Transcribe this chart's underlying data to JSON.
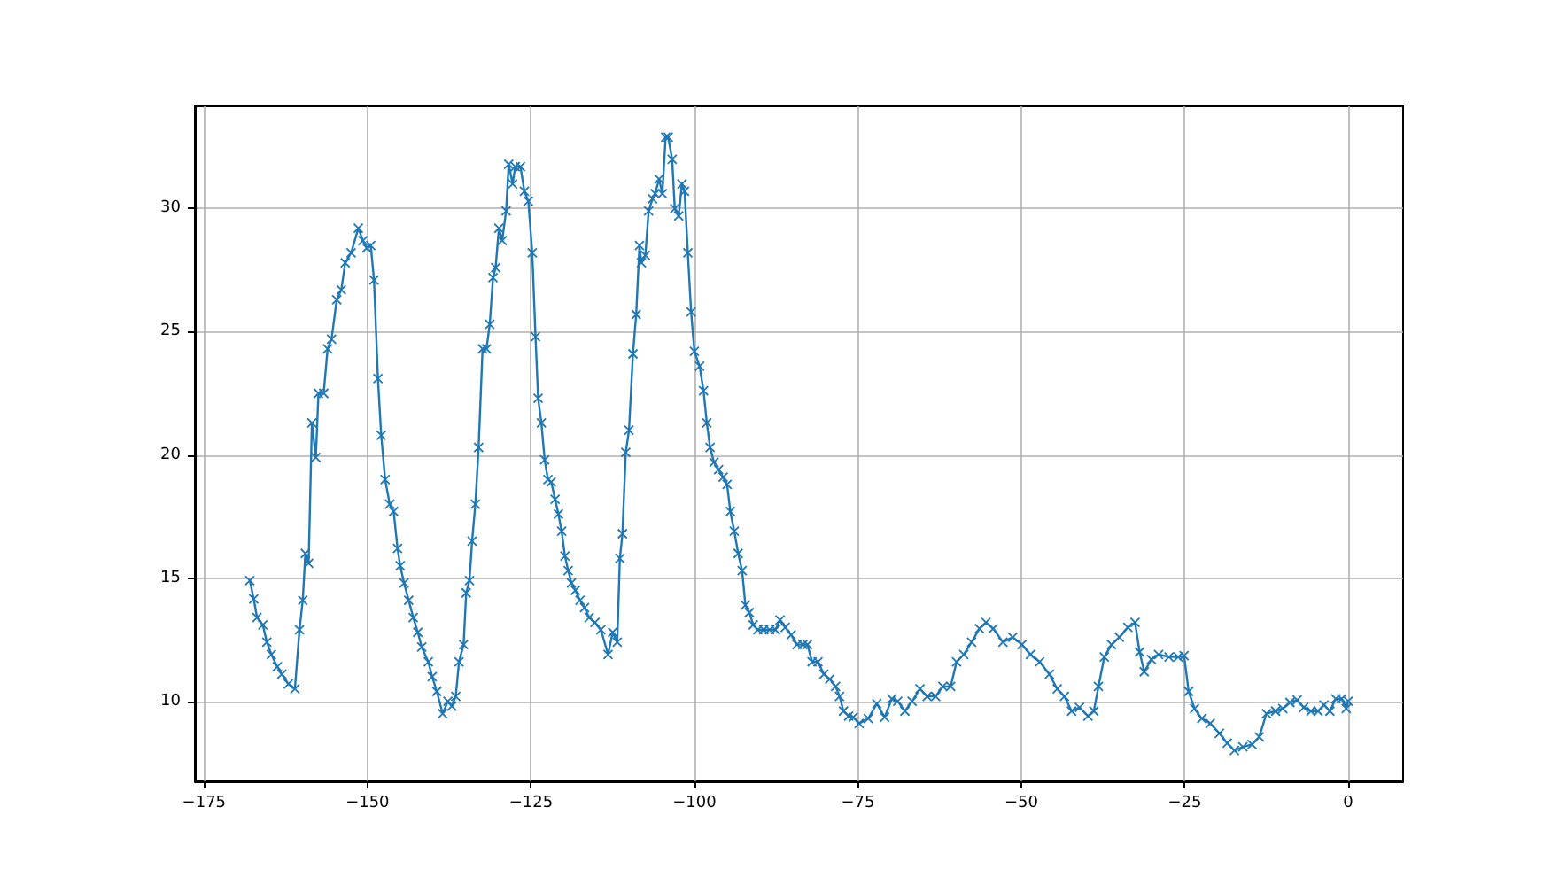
{
  "chart_data": {
    "type": "line",
    "xlim": [
      -176.4,
      8.4
    ],
    "ylim": [
      6.75,
      34.15
    ],
    "xticks": [
      -175,
      -150,
      -125,
      -100,
      -75,
      -50,
      -25,
      0
    ],
    "yticks": [
      10,
      15,
      20,
      25,
      30
    ],
    "grid": true,
    "marker": "cross",
    "line_style": "solid",
    "series": [
      {
        "color": "#1f77b4",
        "x": [
          -168,
          -167.4,
          -166.9,
          -166.0,
          -165.4,
          -164.7,
          -163.8,
          -163.1,
          -162.1,
          -161.1,
          -160.4,
          -159.9,
          -159.5,
          -159.0,
          -158.5,
          -157.9,
          -157.5,
          -156.7,
          -156.1,
          -155.5,
          -154.7,
          -154.0,
          -153.4,
          -152.5,
          -151.4,
          -150.7,
          -150.1,
          -149.5,
          -149.0,
          -148.4,
          -147.9,
          -147.3,
          -146.6,
          -146.0,
          -145.4,
          -145.0,
          -144.4,
          -143.7,
          -143.0,
          -142.3,
          -141.7,
          -140.7,
          -140.1,
          -139.4,
          -138.5,
          -137.7,
          -137.1,
          -136.5,
          -136.0,
          -135.3,
          -134.9,
          -134.4,
          -134.0,
          -133.5,
          -133.0,
          -132.4,
          -131.8,
          -131.3,
          -130.8,
          -130.4,
          -129.9,
          -129.4,
          -128.8,
          -128.4,
          -127.8,
          -127.4,
          -126.6,
          -126.0,
          -125.4,
          -124.8,
          -124.3,
          -123.9,
          -123.4,
          -122.9,
          -122.4,
          -121.9,
          -121.3,
          -120.8,
          -120.3,
          -119.8,
          -119.3,
          -118.8,
          -118.2,
          -117.5,
          -116.8,
          -116.1,
          -115.2,
          -114.3,
          -113.2,
          -112.5,
          -111.8,
          -111.4,
          -111.0,
          -110.5,
          -110.0,
          -109.4,
          -108.9,
          -108.4,
          -108.1,
          -107.5,
          -107.0,
          -106.4,
          -106.0,
          -105.4,
          -104.9,
          -104.4,
          -104.0,
          -103.4,
          -103.0,
          -102.4,
          -101.9,
          -101.5,
          -101.0,
          -100.5,
          -100.0,
          -99.2,
          -98.6,
          -98.1,
          -97.6,
          -97.0,
          -96.3,
          -95.6,
          -95.0,
          -94.5,
          -93.9,
          -93.3,
          -92.7,
          -92.2,
          -91.6,
          -91.0,
          -90.3,
          -89.4,
          -88.5,
          -87.6,
          -86.9,
          -86.1,
          -85.2,
          -84.3,
          -83.4,
          -82.7,
          -82.0,
          -81.1,
          -80.2,
          -79.3,
          -78.4,
          -77.8,
          -77.2,
          -76.4,
          -75.7,
          -74.8,
          -73.4,
          -72.1,
          -70.9,
          -69.8,
          -68.9,
          -67.8,
          -66.7,
          -65.5,
          -64.4,
          -63.1,
          -62.0,
          -60.8,
          -59.9,
          -58.8,
          -57.6,
          -56.4,
          -55.4,
          -54.3,
          -52.8,
          -51.3,
          -49.9,
          -48.6,
          -47.2,
          -45.7,
          -44.5,
          -43.4,
          -42.3,
          -41.1,
          -39.8,
          -38.9,
          -38.2,
          -37.3,
          -36.2,
          -35.0,
          -33.7,
          -32.6,
          -31.9,
          -31.2,
          -30.1,
          -29.0,
          -27.4,
          -26.0,
          -25.1,
          -24.4,
          -23.5,
          -22.4,
          -21.1,
          -19.7,
          -18.5,
          -17.4,
          -16.1,
          -14.7,
          -13.6,
          -12.5,
          -11.1,
          -10.0,
          -8.9,
          -7.8,
          -6.8,
          -5.7,
          -4.6,
          -3.7,
          -2.8,
          -1.9,
          -1.0,
          -0.3,
          0
        ],
        "values": [
          14.9,
          14.15,
          13.4,
          13.1,
          12.4,
          11.9,
          11.4,
          11.1,
          10.7,
          10.5,
          12.9,
          14.1,
          16.0,
          15.6,
          21.3,
          19.9,
          22.5,
          22.5,
          24.3,
          24.7,
          26.3,
          26.7,
          27.8,
          28.2,
          29.2,
          28.7,
          28.4,
          28.5,
          27.1,
          23.1,
          20.8,
          19.0,
          18.0,
          17.7,
          16.2,
          15.5,
          14.8,
          14.1,
          13.4,
          12.8,
          12.2,
          11.6,
          11.0,
          10.4,
          9.5,
          10.0,
          9.8,
          10.2,
          11.6,
          12.3,
          14.4,
          14.9,
          16.5,
          18.0,
          20.3,
          24.3,
          24.3,
          25.3,
          27.2,
          27.6,
          29.2,
          28.7,
          29.9,
          31.8,
          31.0,
          31.7,
          31.7,
          30.7,
          30.3,
          28.2,
          24.8,
          22.3,
          21.3,
          19.8,
          19.0,
          18.9,
          18.2,
          17.6,
          16.9,
          15.9,
          15.3,
          14.8,
          14.5,
          14.1,
          13.8,
          13.4,
          13.2,
          12.9,
          11.9,
          12.8,
          12.4,
          15.8,
          16.8,
          20.1,
          21.0,
          24.1,
          25.7,
          28.5,
          27.8,
          28.1,
          29.9,
          30.4,
          30.6,
          31.2,
          30.6,
          32.9,
          32.9,
          32.0,
          30.0,
          29.7,
          31.0,
          30.7,
          28.2,
          25.8,
          24.2,
          23.6,
          22.6,
          21.3,
          20.3,
          19.7,
          19.4,
          19.1,
          18.8,
          17.7,
          16.9,
          16.0,
          15.3,
          13.9,
          13.6,
          13.1,
          12.9,
          12.9,
          12.9,
          12.9,
          13.3,
          13.0,
          12.7,
          12.3,
          12.3,
          12.3,
          11.6,
          11.6,
          11.1,
          10.9,
          10.6,
          10.2,
          9.6,
          9.4,
          9.35,
          9.1,
          9.3,
          9.9,
          9.35,
          10.1,
          10.0,
          9.6,
          10.0,
          10.5,
          10.2,
          10.2,
          10.6,
          10.6,
          11.6,
          11.9,
          12.4,
          12.95,
          13.2,
          12.95,
          12.4,
          12.6,
          12.3,
          11.9,
          11.6,
          11.1,
          10.5,
          10.2,
          9.6,
          9.75,
          9.4,
          9.6,
          10.6,
          11.8,
          12.3,
          12.6,
          13.0,
          13.2,
          12.0,
          11.2,
          11.7,
          11.9,
          11.8,
          11.8,
          11.85,
          10.4,
          9.7,
          9.3,
          9.1,
          8.7,
          8.3,
          8.0,
          8.15,
          8.25,
          8.55,
          9.5,
          9.6,
          9.7,
          9.95,
          10.05,
          9.75,
          9.6,
          9.6,
          9.85,
          9.6,
          10.1,
          10.1,
          9.7,
          10.0
        ]
      }
    ]
  }
}
